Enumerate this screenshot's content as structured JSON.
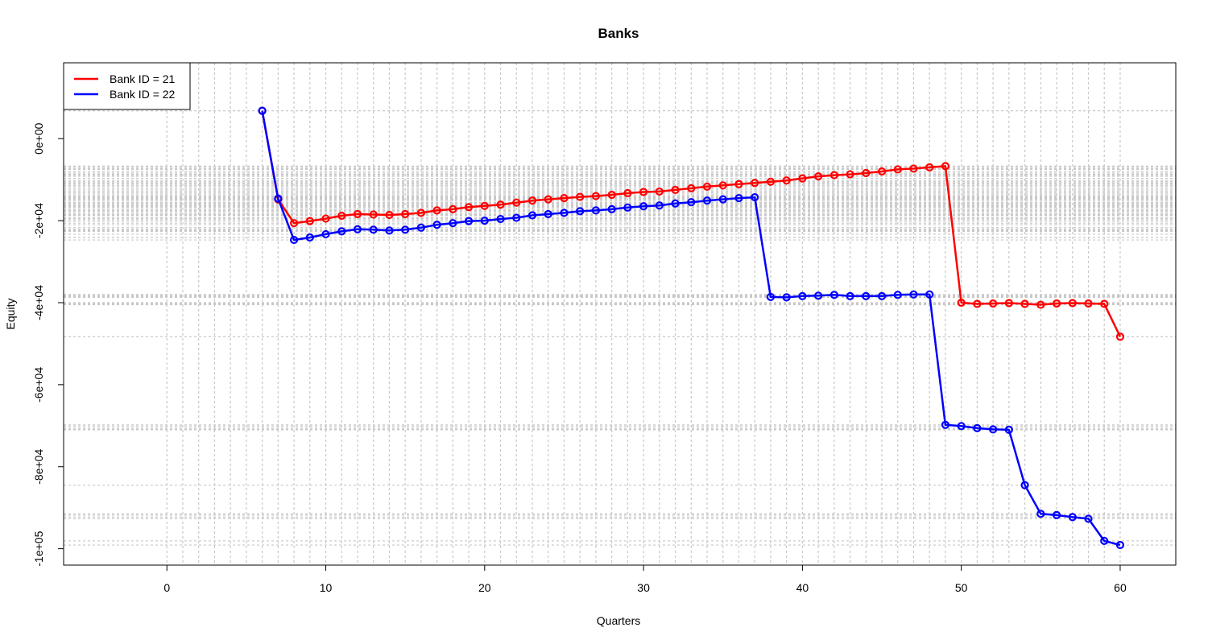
{
  "chart_data": {
    "type": "line",
    "title": "Banks",
    "xlabel": "Quarters",
    "ylabel": "Equity",
    "xlim": [
      -6.5,
      63.5
    ],
    "ylim": [
      -104000,
      18500
    ],
    "x_ticks": [
      0,
      10,
      20,
      30,
      40,
      50,
      60
    ],
    "x_tick_labels": [
      "0",
      "10",
      "20",
      "30",
      "40",
      "50",
      "60"
    ],
    "y_ticks": [
      0,
      -20000,
      -40000,
      -60000,
      -80000,
      -100000
    ],
    "y_tick_labels": [
      "0e+00",
      "-2e+04",
      "-4e+04",
      "-6e+04",
      "-8e+04",
      "-1e+05"
    ],
    "grid": true,
    "legend_position": "top-left",
    "series": [
      {
        "name": "Bank ID = 21",
        "color": "#ff0000",
        "x": [
          6,
          7,
          8,
          9,
          10,
          11,
          12,
          13,
          14,
          15,
          16,
          17,
          18,
          19,
          20,
          21,
          22,
          23,
          24,
          25,
          26,
          27,
          28,
          29,
          30,
          31,
          32,
          33,
          34,
          35,
          36,
          37,
          38,
          39,
          40,
          41,
          42,
          43,
          44,
          45,
          46,
          47,
          48,
          49,
          50,
          51,
          52,
          53,
          54,
          55,
          56,
          57,
          58,
          59,
          60
        ],
        "y": [
          6800,
          -14800,
          -20600,
          -20100,
          -19500,
          -18800,
          -18400,
          -18500,
          -18600,
          -18400,
          -18100,
          -17500,
          -17200,
          -16700,
          -16400,
          -16100,
          -15600,
          -15100,
          -14800,
          -14500,
          -14200,
          -14000,
          -13700,
          -13300,
          -13000,
          -12900,
          -12500,
          -12100,
          -11700,
          -11400,
          -11100,
          -10800,
          -10500,
          -10200,
          -9700,
          -9200,
          -8900,
          -8700,
          -8400,
          -8000,
          -7500,
          -7300,
          -7000,
          -6700,
          -40000,
          -40300,
          -40200,
          -40100,
          -40300,
          -40500,
          -40200,
          -40100,
          -40200,
          -40300,
          -48300
        ]
      },
      {
        "name": "Bank ID = 22",
        "color": "#0000ff",
        "x": [
          6,
          7,
          8,
          9,
          10,
          11,
          12,
          13,
          14,
          15,
          16,
          17,
          18,
          19,
          20,
          21,
          22,
          23,
          24,
          25,
          26,
          27,
          28,
          29,
          30,
          31,
          32,
          33,
          34,
          35,
          36,
          37,
          38,
          39,
          40,
          41,
          42,
          43,
          44,
          45,
          46,
          47,
          48,
          49,
          50,
          51,
          52,
          53,
          54,
          55,
          56,
          57,
          58,
          59,
          60
        ],
        "y": [
          6800,
          -14600,
          -24700,
          -24100,
          -23300,
          -22600,
          -22100,
          -22200,
          -22400,
          -22200,
          -21700,
          -21000,
          -20600,
          -20100,
          -20000,
          -19600,
          -19300,
          -18700,
          -18400,
          -18100,
          -17700,
          -17500,
          -17200,
          -16800,
          -16500,
          -16300,
          -15800,
          -15500,
          -15100,
          -14800,
          -14500,
          -14300,
          -38600,
          -38700,
          -38400,
          -38300,
          -38100,
          -38400,
          -38400,
          -38400,
          -38100,
          -38000,
          -38000,
          -69800,
          -70100,
          -70600,
          -70900,
          -71000,
          -84500,
          -91500,
          -91800,
          -92300,
          -92700,
          -98100,
          -99100
        ]
      }
    ]
  }
}
